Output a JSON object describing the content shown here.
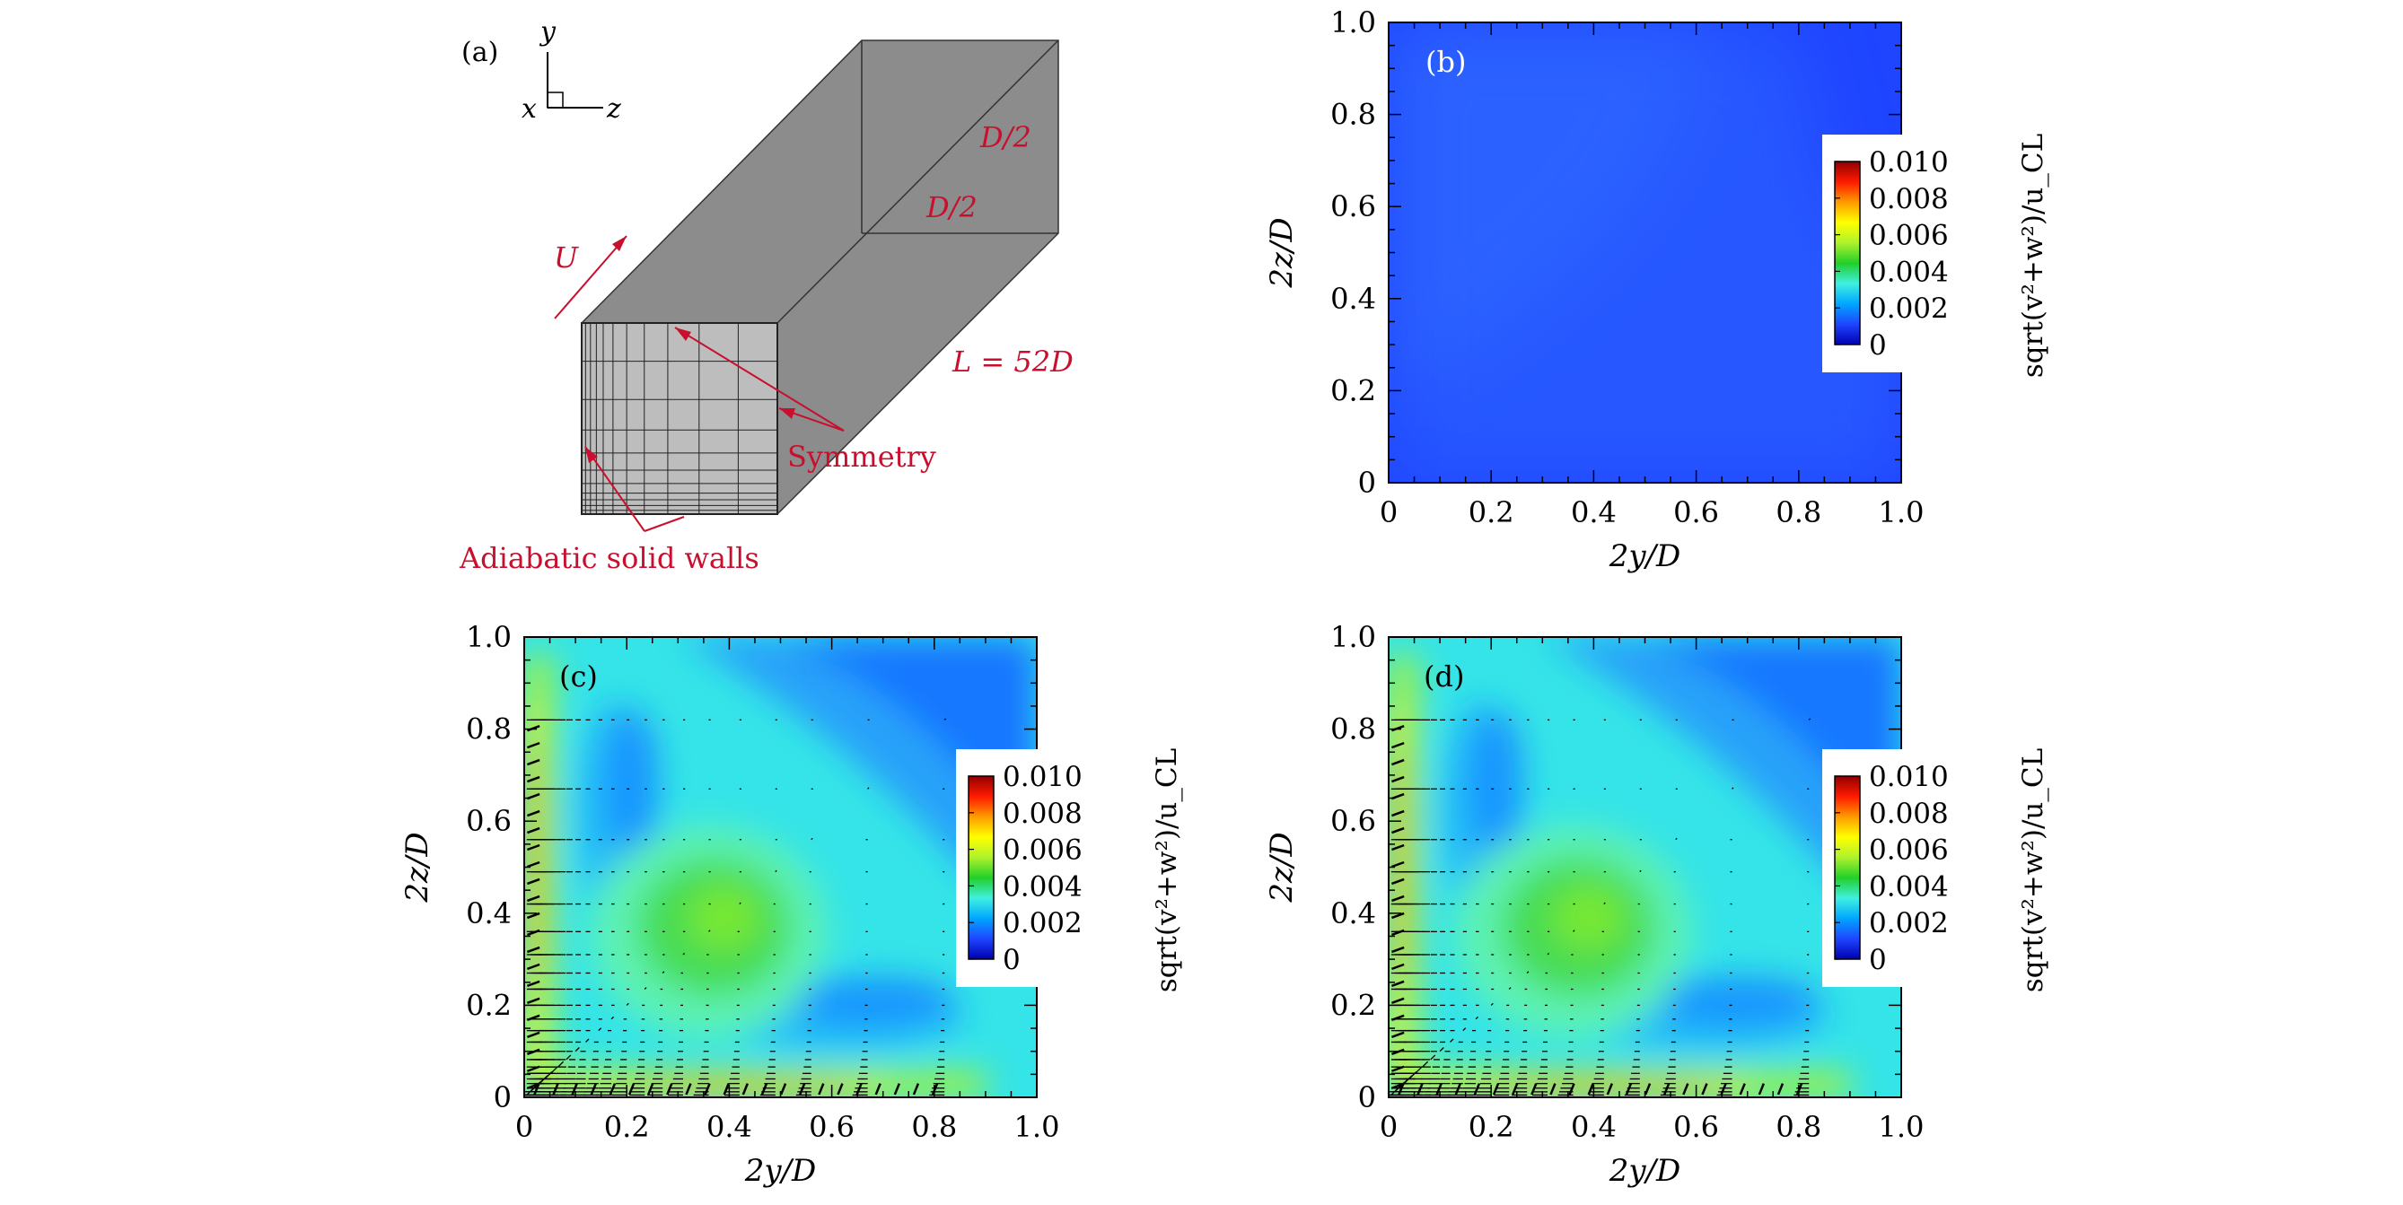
{
  "colors": {
    "wall_dark": "#8c8c8c",
    "wall_mid": "#a6a6a6",
    "wall_light": "#bdbdbd",
    "annotation_red": "#c8102e",
    "field_blue": "#1f45ff",
    "colorbar_stops": [
      "#0000b0",
      "#1f45ff",
      "#00a6ff",
      "#3ff0e0",
      "#22cf2a",
      "#aef22c",
      "#ffff00",
      "#ff9a00",
      "#ff1a00",
      "#900000"
    ]
  },
  "panel_a": {
    "label": "(a)",
    "axis_y": "y",
    "axis_x": "x",
    "axis_z": "z",
    "flow_label": "U",
    "dim_top": "D/2",
    "dim_side": "D/2",
    "length_label": "L = 52D",
    "symmetry_label": "Symmetry",
    "walls_label": "Adiabatic solid walls"
  },
  "chart_data": [
    {
      "type": "heatmap",
      "panel": "(b)",
      "xlabel": "2y/D",
      "ylabel": "2z/D",
      "xlim": [
        0,
        1.0
      ],
      "ylim": [
        0,
        1.0
      ],
      "xticks": [
        "0",
        "0.2",
        "0.4",
        "0.6",
        "0.8",
        "1.0"
      ],
      "yticks": [
        "0",
        "0.2",
        "0.4",
        "0.6",
        "0.8",
        "1.0"
      ],
      "colorbar": {
        "label": "sqrt(v²+w²)/u_CL",
        "range": [
          0,
          0.01
        ],
        "ticks": [
          "0",
          "0.002",
          "0.004",
          "0.006",
          "0.008",
          "0.010"
        ]
      },
      "field": "nearly uniform; magnitude ≈ 0.001–0.0015 everywhere, slightly lower (≈0.001) in bottom-right and top-right corners",
      "vectors": false
    },
    {
      "type": "heatmap",
      "panel": "(c)",
      "xlabel": "2y/D",
      "ylabel": "2z/D",
      "xlim": [
        0,
        1.0
      ],
      "ylim": [
        0,
        1.0
      ],
      "xticks": [
        "0",
        "0.2",
        "0.4",
        "0.6",
        "0.8",
        "1.0"
      ],
      "yticks": [
        "0",
        "0.2",
        "0.4",
        "0.6",
        "0.8",
        "1.0"
      ],
      "colorbar": {
        "label": "sqrt(v²+w²)/u_CL",
        "range": [
          0,
          0.01
        ],
        "ticks": [
          "0",
          "0.002",
          "0.004",
          "0.006",
          "0.008",
          "0.010"
        ]
      },
      "field": "maximum ≈ 0.007 along walls 2y/D≈0.02 and 2z/D≈0.02; bulb ≈ 0.005 centered near (0.38, 0.38); minima ≈ 0.002 near (0.2, 0.68) and (0.68, 0.2); ≈ 0.001 in top-right corner",
      "vectors": true
    },
    {
      "type": "heatmap",
      "panel": "(d)",
      "xlabel": "2y/D",
      "ylabel": "2z/D",
      "xlim": [
        0,
        1.0
      ],
      "ylim": [
        0,
        1.0
      ],
      "xticks": [
        "0",
        "0.2",
        "0.4",
        "0.6",
        "0.8",
        "1.0"
      ],
      "yticks": [
        "0",
        "0.2",
        "0.4",
        "0.6",
        "0.8",
        "1.0"
      ],
      "colorbar": {
        "label": "sqrt(v²+w²)/u_CL",
        "range": [
          0,
          0.01
        ],
        "ticks": [
          "0",
          "0.002",
          "0.004",
          "0.006",
          "0.008",
          "0.010"
        ]
      },
      "field": "same as (c): maximum ≈ 0.007 along walls; bulb ≈ 0.005 near (0.38, 0.38); minima ≈ 0.002 near (0.2, 0.68) and (0.68, 0.2)",
      "vectors": true
    }
  ]
}
